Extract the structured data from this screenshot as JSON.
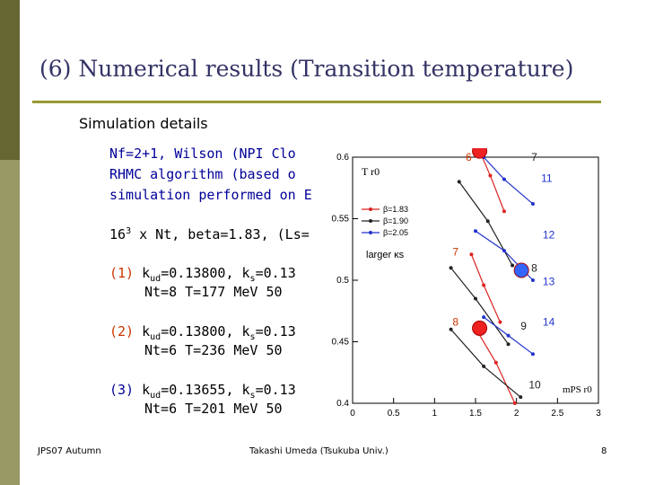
{
  "slide": {
    "title": "(6) Numerical results (Transition temperature)",
    "subtitle": "Simulation details",
    "lines": {
      "l1": "Nf=2+1, Wilson (NPI Clo",
      "l2": "RHMC algorithm (based o",
      "l3": "simulation performed on E",
      "l4_a": "16",
      "l4_sup": "3",
      "l4_b": " x Nt, beta=1.83, (Ls="
    },
    "items": [
      {
        "num": "(1)",
        "k_label": " k",
        "k_sub": "ud",
        "k_val": "=0.13800, k",
        "ks_sub": "s",
        "ks_val": "=0.13",
        "line2": "Nt=8  T=177 MeV  50"
      },
      {
        "num": "(2)",
        "k_label": " k",
        "k_sub": "ud",
        "k_val": "=0.13800, k",
        "ks_sub": "s",
        "ks_val": "=0.13",
        "line2": "Nt=6  T=236 MeV  50"
      },
      {
        "num": "(3)",
        "k_label": " k",
        "k_sub": "ud",
        "k_val": "=0.13655, k",
        "ks_sub": "s",
        "ks_val": "=0.13",
        "line2": "Nt=6  T=201 MeV  50"
      }
    ],
    "footer": {
      "left": "JPS07 Autumn",
      "center": "Takashi Umeda (Tsukuba Univ.)",
      "page": "8"
    },
    "colors": {
      "title": "#333366",
      "rule": "#999933",
      "sidebar": "#999966",
      "blue": "#000099",
      "red": "#cc3300"
    }
  },
  "chart_data": {
    "type": "line",
    "xlim": [
      0,
      3
    ],
    "ylim": [
      0.4,
      0.6
    ],
    "xticks": [
      "0",
      "0.5",
      "1",
      "1.5",
      "2",
      "2.5",
      "3"
    ],
    "yticks": [
      "0.4",
      "0.45",
      "0.5",
      "0.55",
      "0.6"
    ],
    "ylabel": "T r0",
    "xlabel": "mPS r0",
    "annotation": "larger κs",
    "legend": [
      {
        "name": "β=1.83",
        "color": "#dd2222"
      },
      {
        "name": "β=1.90",
        "color": "#222222"
      },
      {
        "name": "β=2.05",
        "color": "#2233cc"
      }
    ],
    "series": [
      {
        "name": "β=1.83",
        "color": "#dd2222",
        "points": [
          [
            1.55,
            0.605
          ],
          [
            1.68,
            0.585
          ],
          [
            1.85,
            0.556
          ]
        ]
      },
      {
        "name": "β=1.83",
        "color": "#dd2222",
        "points": [
          [
            1.45,
            0.521
          ],
          [
            1.6,
            0.496
          ],
          [
            1.8,
            0.466
          ]
        ]
      },
      {
        "name": "β=1.83",
        "color": "#dd2222",
        "points": [
          [
            1.5,
            0.461
          ],
          [
            1.75,
            0.433
          ],
          [
            1.98,
            0.4
          ]
        ]
      },
      {
        "name": "β=1.90",
        "color": "#222222",
        "points": [
          [
            1.3,
            0.58
          ],
          [
            1.65,
            0.548
          ],
          [
            1.95,
            0.512
          ]
        ]
      },
      {
        "name": "β=1.90",
        "color": "#222222",
        "points": [
          [
            1.2,
            0.51
          ],
          [
            1.5,
            0.485
          ],
          [
            1.9,
            0.448
          ]
        ]
      },
      {
        "name": "β=1.90",
        "color": "#222222",
        "points": [
          [
            1.2,
            0.46
          ],
          [
            1.6,
            0.43
          ],
          [
            2.05,
            0.405
          ]
        ]
      },
      {
        "name": "β=2.05",
        "color": "#2233cc",
        "points": [
          [
            1.6,
            0.6
          ],
          [
            1.85,
            0.582
          ],
          [
            2.2,
            0.562
          ]
        ]
      },
      {
        "name": "β=2.05",
        "color": "#2233cc",
        "points": [
          [
            1.5,
            0.54
          ],
          [
            1.85,
            0.524
          ],
          [
            2.2,
            0.5
          ]
        ]
      },
      {
        "name": "β=2.05",
        "color": "#2233cc",
        "points": [
          [
            1.6,
            0.47
          ],
          [
            1.9,
            0.455
          ],
          [
            2.2,
            0.44
          ]
        ]
      }
    ],
    "highlight_points": [
      {
        "x": 1.55,
        "y": 0.605,
        "color": "#ee2222"
      },
      {
        "x": 1.55,
        "y": 0.461,
        "color": "#ee2222"
      },
      {
        "x": 2.06,
        "y": 0.508,
        "color": "#3366ff"
      }
    ],
    "point_labels": [
      {
        "text": "6",
        "x": 1.38,
        "y": 0.597,
        "color": "#cc3300"
      },
      {
        "text": "7",
        "x": 2.18,
        "y": 0.597,
        "color": "#222222"
      },
      {
        "text": "11",
        "x": 2.3,
        "y": 0.58,
        "color": "#2233cc"
      },
      {
        "text": "7",
        "x": 1.22,
        "y": 0.52,
        "color": "#cc3300"
      },
      {
        "text": "8",
        "x": 2.18,
        "y": 0.507,
        "color": "#222222"
      },
      {
        "text": "12",
        "x": 2.32,
        "y": 0.534,
        "color": "#2233cc"
      },
      {
        "text": "13",
        "x": 2.32,
        "y": 0.496,
        "color": "#2233cc"
      },
      {
        "text": "8",
        "x": 1.22,
        "y": 0.463,
        "color": "#cc3300"
      },
      {
        "text": "9",
        "x": 2.05,
        "y": 0.46,
        "color": "#222222"
      },
      {
        "text": "14",
        "x": 2.32,
        "y": 0.463,
        "color": "#2233cc"
      },
      {
        "text": "10",
        "x": 2.15,
        "y": 0.412,
        "color": "#222222"
      }
    ]
  }
}
